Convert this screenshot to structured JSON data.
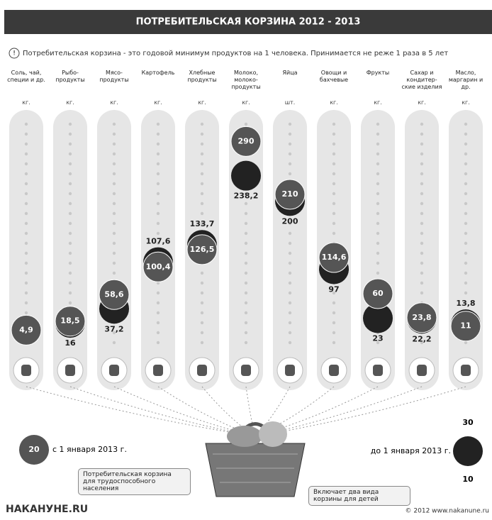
{
  "chart_data": {
    "type": "bubble-column",
    "title": "ПОТРЕБИТЕЛЬСКАЯ КОРЗИНА 2012 - 2013",
    "subtitle": "Потребительская корзина - это годовой минимум продуктов на 1 человека. Принимается не реже 1 раза в 5 лет",
    "categories": [
      "Соль, чай, специи и др.",
      "Рыбо-продукты",
      "Мясо-продукты",
      "Картофель",
      "Хлебные продукты",
      "Молоко, молоко-продукты",
      "Яйца",
      "Овощи и бахчевые",
      "Фрукты",
      "Сахар и кондитер-ские изделия",
      "Масло, маргарин и др."
    ],
    "units": [
      "кг.",
      "кг.",
      "кг.",
      "кг.",
      "кг.",
      "кг.",
      "шт.",
      "кг.",
      "кг.",
      "кг.",
      "кг."
    ],
    "series": [
      {
        "name": "с 1 января 2013 г.",
        "color": "#555555",
        "values": [
          4.9,
          18.5,
          58.6,
          100.4,
          126.5,
          290,
          210,
          114.6,
          60,
          23.8,
          11
        ],
        "value_labels": [
          "4,9",
          "18,5",
          "58,6",
          "100,4",
          "126,5",
          "290",
          "210",
          "114,6",
          "60",
          "23,8",
          "11"
        ]
      },
      {
        "name": "до 1 января 2013 г.",
        "color": "#222222",
        "values": [
          null,
          16,
          37.2,
          107.6,
          133.7,
          238.2,
          200,
          97,
          23,
          22.2,
          13.8
        ],
        "value_labels": [
          null,
          "16",
          "37,2",
          "107,6",
          "133,7",
          "238,2",
          "200",
          "97",
          "23",
          "22,2",
          "13,8"
        ]
      }
    ],
    "ylim": [
      0,
      300
    ],
    "legend_samples": {
      "new": 20,
      "old_top": 30,
      "old_bottom": 10
    },
    "notes": [
      "Потребительская корзина для трудоспособного населения",
      "Включает два вида корзины для детей"
    ],
    "logo": "НАКАНУНЕ.RU",
    "copyright": "© 2012 www.nakanune.ru"
  }
}
